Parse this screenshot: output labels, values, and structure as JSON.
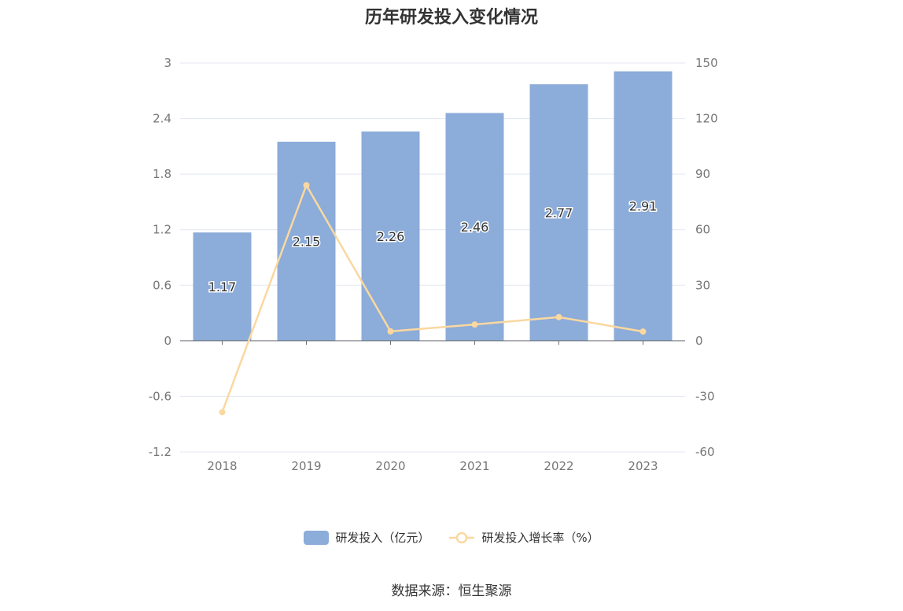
{
  "chart_data": {
    "type": "bar",
    "title": "历年研发投入变化情况",
    "categories": [
      "2018",
      "2019",
      "2020",
      "2021",
      "2022",
      "2023"
    ],
    "series": [
      {
        "name": "研发投入（亿元）",
        "type": "bar",
        "axis": "left",
        "values": [
          1.17,
          2.15,
          2.26,
          2.46,
          2.77,
          2.91
        ],
        "labels": [
          "1.17",
          "2.15",
          "2.26",
          "2.46",
          "2.77",
          "2.91"
        ],
        "color": "#8cacd9"
      },
      {
        "name": "研发投入增长率（%）",
        "type": "line",
        "axis": "right",
        "values": [
          -38.5,
          84,
          5.1,
          8.8,
          12.8,
          5.0
        ],
        "color": "#fad8a0"
      }
    ],
    "y_left": {
      "min": -1.2,
      "max": 3,
      "ticks": [
        "3",
        "2.4",
        "1.8",
        "1.2",
        "0.6",
        "0",
        "-0.6",
        "-1.2"
      ]
    },
    "y_right": {
      "min": -60,
      "max": 150,
      "ticks": [
        "150",
        "120",
        "90",
        "60",
        "30",
        "0",
        "-30",
        "-60"
      ]
    },
    "grid": true,
    "legend_position": "bottom"
  },
  "source": "数据来源：恒生聚源"
}
